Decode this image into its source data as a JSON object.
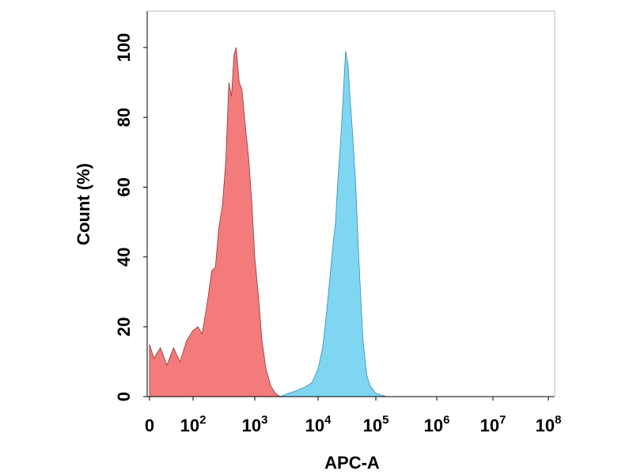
{
  "chart_data": {
    "type": "area",
    "title": "",
    "xlabel": "APC-A",
    "ylabel": "Count  (%)",
    "x_scale": "biexponential",
    "x_ticks": [
      {
        "value": 0,
        "base": "0",
        "exp": ""
      },
      {
        "value": 100,
        "base": "10",
        "exp": "2"
      },
      {
        "value": 1000,
        "base": "10",
        "exp": "3"
      },
      {
        "value": 10000,
        "base": "10",
        "exp": "4"
      },
      {
        "value": 100000,
        "base": "10",
        "exp": "5"
      },
      {
        "value": 1000000,
        "base": "10",
        "exp": "6"
      },
      {
        "value": 10000000,
        "base": "10",
        "exp": "7"
      },
      {
        "value": 100000000,
        "base": "10",
        "exp": "8"
      }
    ],
    "y_ticks": [
      0,
      20,
      40,
      60,
      80,
      100
    ],
    "ylim": [
      0,
      110
    ],
    "grid": false,
    "series": [
      {
        "color": "#f47b7b",
        "edge": "#8c3a3a",
        "x": [
          0,
          10,
          25,
          40,
          55,
          70,
          85,
          100,
          120,
          140,
          160,
          180,
          200,
          230,
          260,
          300,
          340,
          380,
          420,
          460,
          500,
          560,
          620,
          700,
          800,
          900,
          1000,
          1150,
          1300,
          1500,
          1800,
          2100,
          2500,
          3000
        ],
        "y": [
          15,
          11,
          14,
          9,
          14,
          10,
          16,
          19,
          20,
          18,
          24,
          30,
          36,
          37,
          48,
          55,
          68,
          90,
          86,
          98,
          100,
          90,
          88,
          78,
          68,
          55,
          40,
          28,
          16,
          8,
          3,
          1,
          0,
          0
        ]
      },
      {
        "color": "#7fd6f2",
        "edge": "#3a8cae",
        "x": [
          2500,
          3500,
          5000,
          6500,
          8000,
          9000,
          10000,
          12000,
          14000,
          16000,
          18000,
          20000,
          22000,
          24000,
          26000,
          28000,
          30000,
          33000,
          36000,
          40000,
          45000,
          50000,
          55000,
          60000,
          70000,
          80000,
          100000,
          150000
        ],
        "y": [
          0,
          1,
          2,
          3,
          4,
          6,
          8,
          14,
          24,
          34,
          43,
          50,
          62,
          71,
          80,
          90,
          99,
          95,
          85,
          74,
          60,
          42,
          28,
          16,
          6,
          3,
          1,
          0
        ]
      }
    ]
  }
}
